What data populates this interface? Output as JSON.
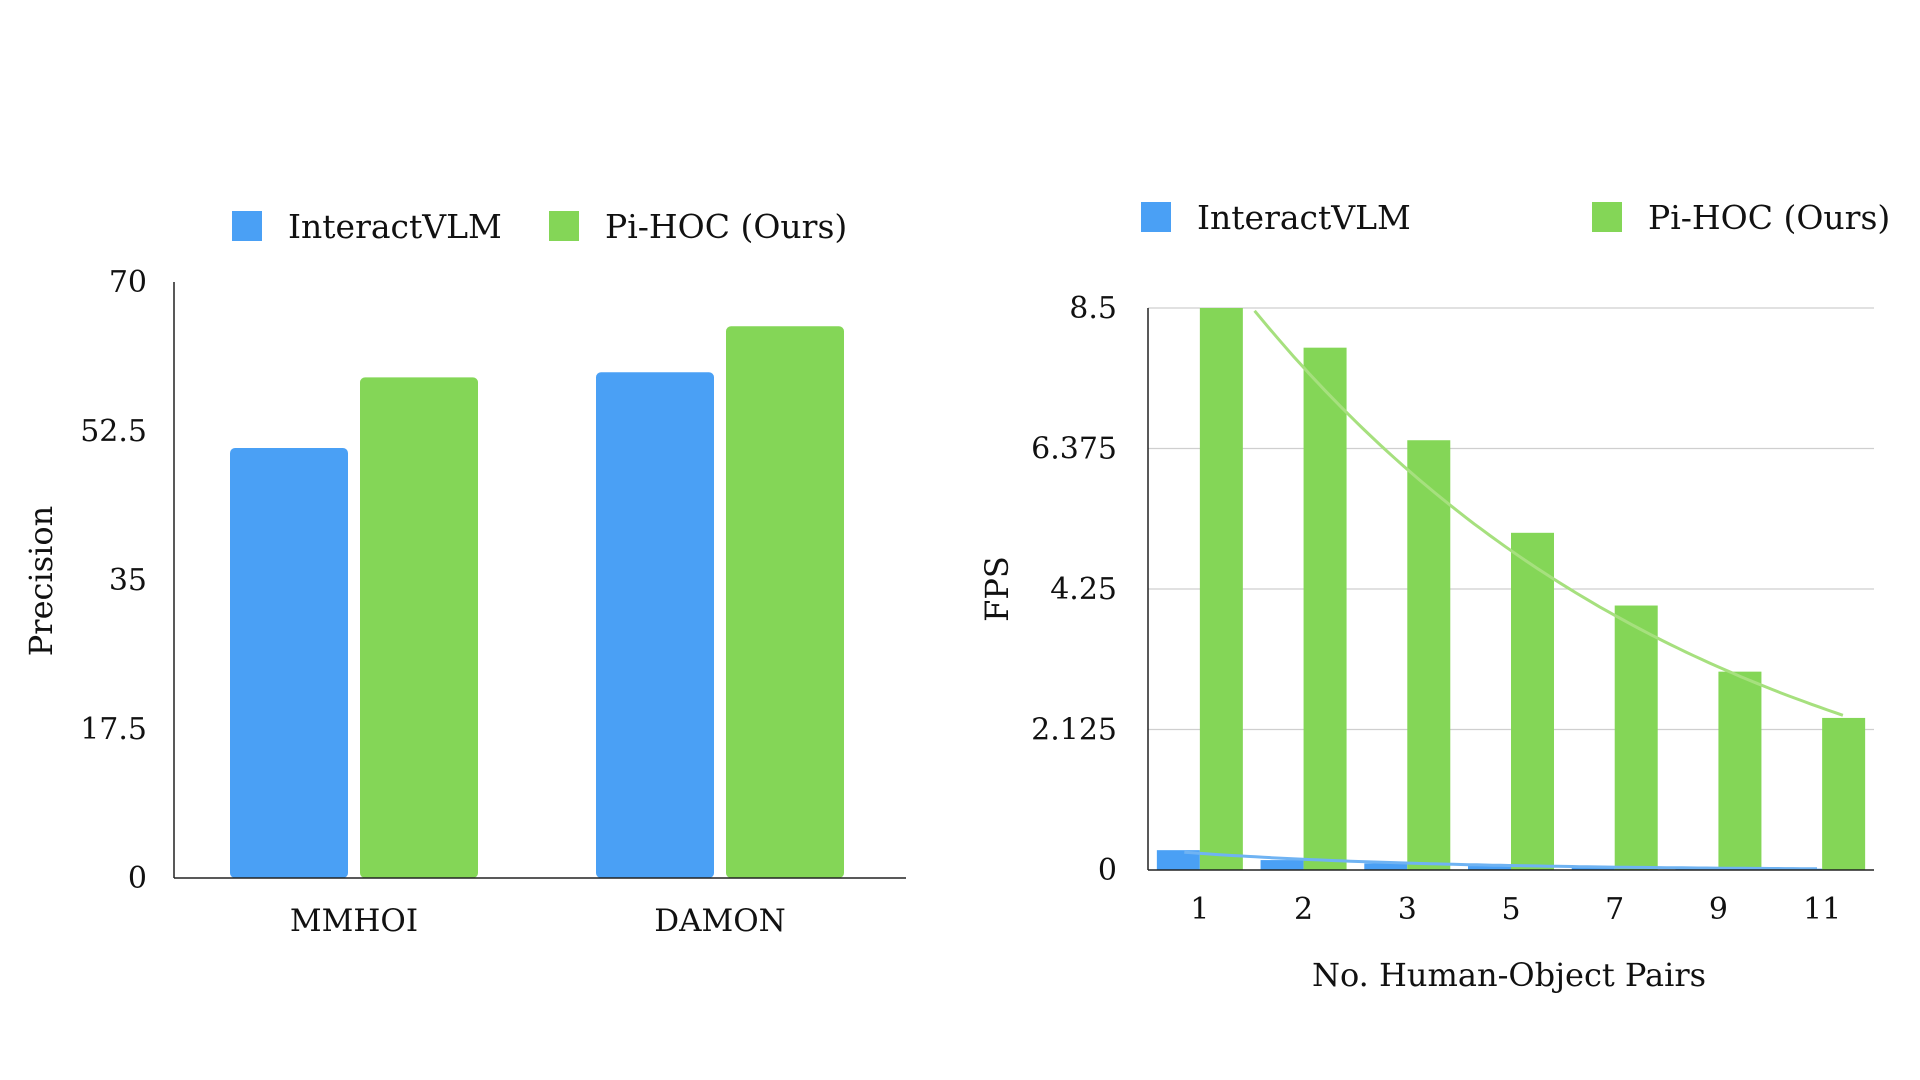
{
  "colors": {
    "interactvlm": "#4aa0f5",
    "pihoc": "#84d657"
  },
  "chart_data": [
    {
      "type": "bar",
      "title": "",
      "categories": [
        "MMHOI",
        "DAMON"
      ],
      "series": [
        {
          "name": "InteractVLM",
          "values": [
            50.5,
            59.4
          ]
        },
        {
          "name": "Pi-HOC (Ours)",
          "values": [
            58.8,
            64.8
          ]
        }
      ],
      "xlabel": "",
      "ylabel": "Precision",
      "ylim": [
        0,
        70
      ],
      "yticks": [
        "0",
        "17.5",
        "35",
        "52.5",
        "70"
      ],
      "grid": false,
      "legend": "top"
    },
    {
      "type": "bar",
      "title": "",
      "categories": [
        "1",
        "2",
        "3",
        "5",
        "7",
        "9",
        "11"
      ],
      "series": [
        {
          "name": "InteractVLM",
          "values": [
            0.3,
            0.15,
            0.1,
            0.06,
            0.04,
            0.03,
            0.02
          ]
        },
        {
          "name": "Pi-HOC (Ours)",
          "values": [
            8.5,
            7.9,
            6.5,
            5.1,
            4.0,
            3.0,
            2.3
          ]
        }
      ],
      "trendlines": [
        {
          "series": "InteractVLM",
          "type": "exponential"
        },
        {
          "series": "Pi-HOC (Ours)",
          "type": "exponential"
        }
      ],
      "xlabel": "No. Human-Object Pairs",
      "ylabel": "FPS",
      "ylim": [
        0,
        8.5
      ],
      "yticks": [
        "0",
        "2.125",
        "4.25",
        "6.375",
        "8.5"
      ],
      "grid": true,
      "legend": "top"
    }
  ]
}
